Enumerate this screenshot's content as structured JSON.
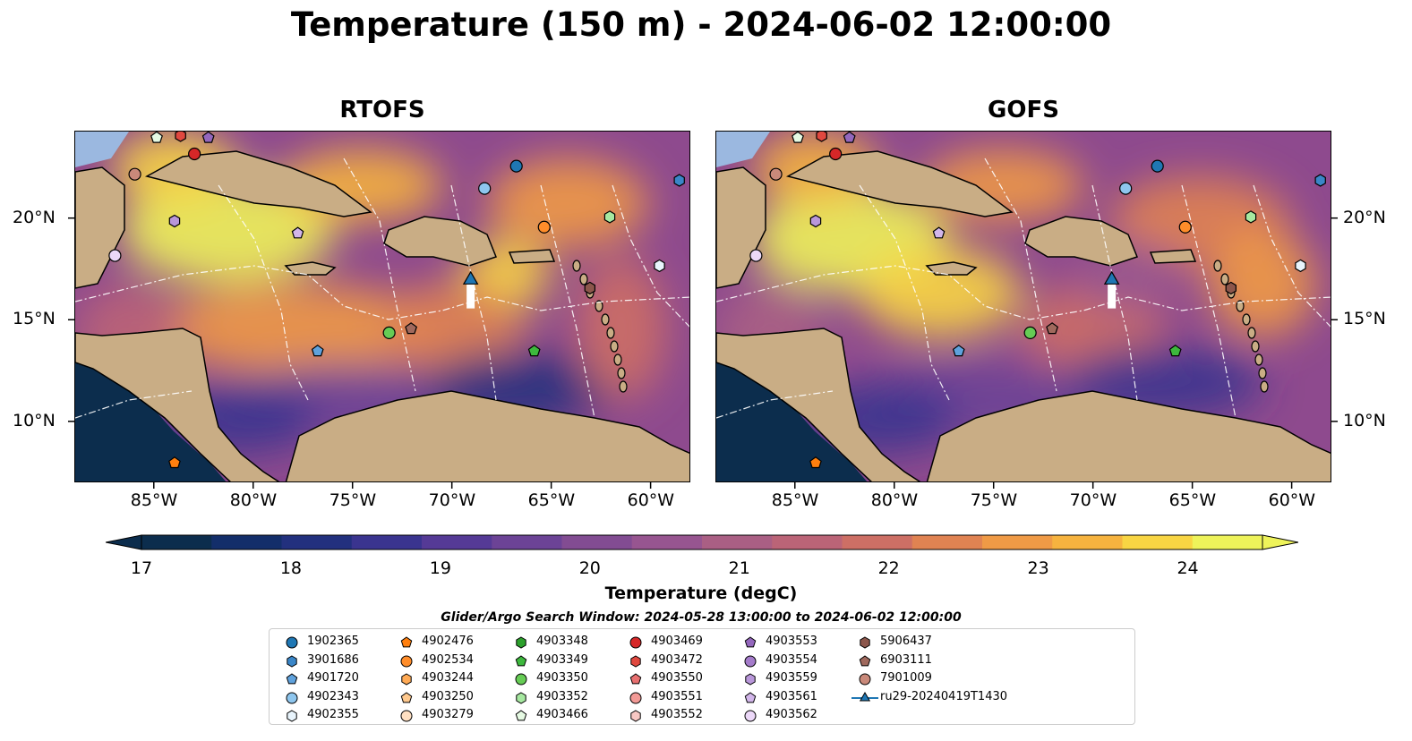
{
  "title": "Temperature (150 m) - 2024-06-02 12:00:00",
  "panels": [
    {
      "name": "RTOFS"
    },
    {
      "name": "GOFS"
    }
  ],
  "lon_ticks": [
    "85°W",
    "80°W",
    "75°W",
    "70°W",
    "65°W",
    "60°W"
  ],
  "lat_ticks": [
    "20°N",
    "15°N",
    "10°N"
  ],
  "map_extent": {
    "lon": [
      -89,
      -58
    ],
    "lat": [
      7,
      24.3
    ]
  },
  "colorbar": {
    "label": "Temperature (degC)",
    "ticks": [
      "17",
      "18",
      "19",
      "20",
      "21",
      "22",
      "23",
      "24"
    ],
    "range": [
      17,
      24.5
    ],
    "colors": [
      "#0c2d4d",
      "#132e6a",
      "#22307e",
      "#3a348f",
      "#553a96",
      "#6c4396",
      "#824c92",
      "#975590",
      "#aa5f84",
      "#bb6477",
      "#cd6f65",
      "#e08352",
      "#ef9a46",
      "#f6b33f",
      "#f8d543",
      "#eef35a"
    ]
  },
  "search_window": "Glider/Argo Search Window: 2024-05-28 13:00:00 to 2024-06-02 12:00:00",
  "legend": [
    {
      "id": "1902365",
      "marker": "circle",
      "color": "#1f77b4"
    },
    {
      "id": "3901686",
      "marker": "hexagon",
      "color": "#3a86c8"
    },
    {
      "id": "4901720",
      "marker": "pentagon",
      "color": "#5fa2dd"
    },
    {
      "id": "4902343",
      "marker": "circle",
      "color": "#8ec6ee"
    },
    {
      "id": "4902355",
      "marker": "hexagon",
      "color": "#e8f4fc"
    },
    {
      "id": "4902476",
      "marker": "pentagon",
      "color": "#ff7f0e"
    },
    {
      "id": "4902534",
      "marker": "circle",
      "color": "#ff8d2a"
    },
    {
      "id": "4903244",
      "marker": "hexagon",
      "color": "#ffaa55"
    },
    {
      "id": "4903250",
      "marker": "pentagon",
      "color": "#ffc98e"
    },
    {
      "id": "4903279",
      "marker": "circle",
      "color": "#ffe0c2"
    },
    {
      "id": "4903348",
      "marker": "hexagon",
      "color": "#2ca02c"
    },
    {
      "id": "4903349",
      "marker": "pentagon",
      "color": "#3db83d"
    },
    {
      "id": "4903350",
      "marker": "circle",
      "color": "#66cc55"
    },
    {
      "id": "4903352",
      "marker": "hexagon",
      "color": "#a6e8a0"
    },
    {
      "id": "4903466",
      "marker": "pentagon",
      "color": "#e6fae3"
    },
    {
      "id": "4903469",
      "marker": "circle",
      "color": "#d62728"
    },
    {
      "id": "4903472",
      "marker": "hexagon",
      "color": "#e0483f"
    },
    {
      "id": "4903550",
      "marker": "pentagon",
      "color": "#e87070"
    },
    {
      "id": "4903551",
      "marker": "circle",
      "color": "#f29a96"
    },
    {
      "id": "4903552",
      "marker": "hexagon",
      "color": "#f8c8c4"
    },
    {
      "id": "4903553",
      "marker": "pentagon",
      "color": "#9467bd"
    },
    {
      "id": "4903554",
      "marker": "circle",
      "color": "#a57ccb"
    },
    {
      "id": "4903559",
      "marker": "hexagon",
      "color": "#b997da"
    },
    {
      "id": "4903561",
      "marker": "pentagon",
      "color": "#d2b6ea"
    },
    {
      "id": "4903562",
      "marker": "circle",
      "color": "#ecd8f8"
    },
    {
      "id": "5906437",
      "marker": "hexagon",
      "color": "#8c564b"
    },
    {
      "id": "6903111",
      "marker": "pentagon",
      "color": "#a0695d"
    },
    {
      "id": "7901009",
      "marker": "circle",
      "color": "#c9897a"
    },
    {
      "id": "ru29-20240419T1430",
      "marker": "triangle",
      "color": "#1f77b4"
    }
  ],
  "floats": [
    {
      "id": "1902365",
      "lon": -66.8,
      "lat": 22.6
    },
    {
      "id": "4902343",
      "lon": -68.4,
      "lat": 21.5
    },
    {
      "id": "3901686",
      "lon": -58.6,
      "lat": 21.9
    },
    {
      "id": "4903352",
      "lon": -62.1,
      "lat": 20.1
    },
    {
      "id": "4902534",
      "lon": -65.4,
      "lat": 19.6
    },
    {
      "id": "4902355",
      "lon": -59.6,
      "lat": 17.7
    },
    {
      "id": "5906437",
      "lon": -63.1,
      "lat": 16.6
    },
    {
      "id": "4903350",
      "lon": -73.2,
      "lat": 14.4
    },
    {
      "id": "6903111",
      "lon": -72.1,
      "lat": 14.6
    },
    {
      "id": "4903349",
      "lon": -65.9,
      "lat": 13.5
    },
    {
      "id": "4901720",
      "lon": -76.8,
      "lat": 13.5
    },
    {
      "id": "4903559",
      "lon": -84.0,
      "lat": 19.9
    },
    {
      "id": "4903561",
      "lon": -77.8,
      "lat": 19.3
    },
    {
      "id": "4903562",
      "lon": -87.0,
      "lat": 18.2
    },
    {
      "id": "7901009",
      "lon": -86.0,
      "lat": 22.2
    },
    {
      "id": "4903469",
      "lon": -83.0,
      "lat": 23.2
    },
    {
      "id": "4903472",
      "lon": -83.7,
      "lat": 24.1
    },
    {
      "id": "4903553",
      "lon": -82.3,
      "lat": 24.0
    },
    {
      "id": "4903466",
      "lon": -84.9,
      "lat": 24.0
    },
    {
      "id": "4902476",
      "lon": -84.0,
      "lat": 8.0
    }
  ],
  "glider": {
    "id": "ru29-20240419T1430",
    "lon": -69.1,
    "lat": 17.0,
    "lat_end": 15.6
  }
}
